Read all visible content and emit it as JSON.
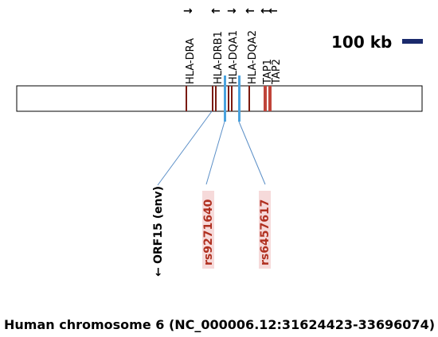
{
  "genes": [
    {
      "name": "HLA-DRA",
      "direction": "→"
    },
    {
      "name": "HLA-DRB1",
      "direction": "←"
    },
    {
      "name": "HLA-DQA1",
      "direction": "→"
    },
    {
      "name": "HLA-DQA2",
      "direction": "←"
    },
    {
      "name": "TAP1",
      "direction": "←"
    },
    {
      "name": "TAP2",
      "direction": "←"
    }
  ],
  "scale_bar": {
    "label": "100 kb",
    "color": "#1a2a6c"
  },
  "snps": [
    {
      "name": "rs9271640"
    },
    {
      "name": "rs6457617"
    }
  ],
  "orf": {
    "name": "ORF15 (env)",
    "direction": "←"
  },
  "caption": "Human chromosome 6 (NC_000006.12:31624423-33696074)",
  "colors": {
    "gene_mark": "#7a1a10",
    "snp_mark": "#4aa3df",
    "snp_highlight": "#f6dada",
    "connector": "#5b8fc7"
  }
}
